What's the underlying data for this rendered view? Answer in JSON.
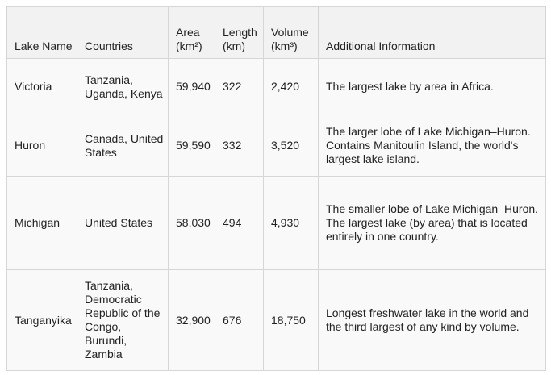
{
  "table": {
    "header": [
      "Lake Name",
      "Countries",
      "Area (km²)",
      "Length (km)",
      "Volume (km³)",
      "Additional Information"
    ],
    "rows": [
      [
        "Victoria",
        "Tanzania, Uganda, Kenya",
        "59,940",
        "322",
        "2,420",
        "The largest lake by area in Africa."
      ],
      [
        "Huron",
        "Canada, United States",
        "59,590",
        "332",
        "3,520",
        "The larger lobe of Lake Michigan–Huron. Contains Manitoulin Island, the world's largest lake island."
      ],
      [
        "Michigan",
        "United States",
        "58,030",
        "494",
        "4,930",
        "The smaller lobe of Lake Michigan–Huron. The largest lake (by area) that is located entirely in one country."
      ],
      [
        "Tanganyika",
        "Tanzania, Democratic Republic of the Congo, Burundi, Zambia",
        "32,900",
        "676",
        "18,750",
        "Longest freshwater lake in the world and the third largest of any kind by volume."
      ]
    ]
  }
}
